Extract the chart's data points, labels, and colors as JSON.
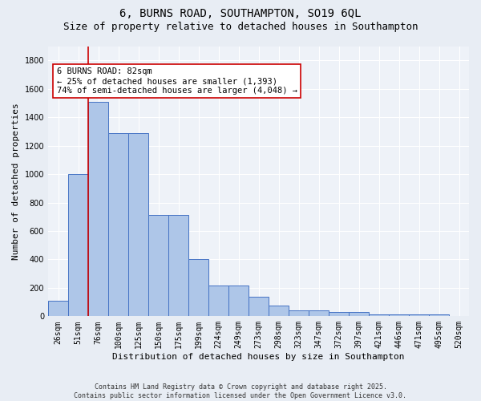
{
  "title_line1": "6, BURNS ROAD, SOUTHAMPTON, SO19 6QL",
  "title_line2": "Size of property relative to detached houses in Southampton",
  "xlabel": "Distribution of detached houses by size in Southampton",
  "ylabel": "Number of detached properties",
  "categories": [
    "26sqm",
    "51sqm",
    "76sqm",
    "100sqm",
    "125sqm",
    "150sqm",
    "175sqm",
    "199sqm",
    "224sqm",
    "249sqm",
    "273sqm",
    "298sqm",
    "323sqm",
    "347sqm",
    "372sqm",
    "397sqm",
    "421sqm",
    "446sqm",
    "471sqm",
    "495sqm",
    "520sqm"
  ],
  "values": [
    110,
    1000,
    1510,
    1290,
    1290,
    710,
    710,
    405,
    215,
    215,
    135,
    75,
    40,
    40,
    30,
    30,
    15,
    15,
    15,
    15,
    0
  ],
  "bar_color": "#aec6e8",
  "bar_edge_color": "#4472c4",
  "vline_x": 1.5,
  "vline_color": "#cc0000",
  "annotation_text": "6 BURNS ROAD: 82sqm\n← 25% of detached houses are smaller (1,393)\n74% of semi-detached houses are larger (4,048) →",
  "annotation_box_color": "#ffffff",
  "annotation_box_edge": "#cc0000",
  "ylim": [
    0,
    1900
  ],
  "yticks": [
    0,
    200,
    400,
    600,
    800,
    1000,
    1200,
    1400,
    1600,
    1800
  ],
  "bg_color": "#e8edf4",
  "plot_bg_color": "#eef2f8",
  "grid_color": "#ffffff",
  "footer_text": "Contains HM Land Registry data © Crown copyright and database right 2025.\nContains public sector information licensed under the Open Government Licence v3.0.",
  "title_fontsize": 10,
  "subtitle_fontsize": 9,
  "axis_label_fontsize": 8,
  "tick_fontsize": 7,
  "annotation_fontsize": 7.5,
  "footer_fontsize": 6
}
